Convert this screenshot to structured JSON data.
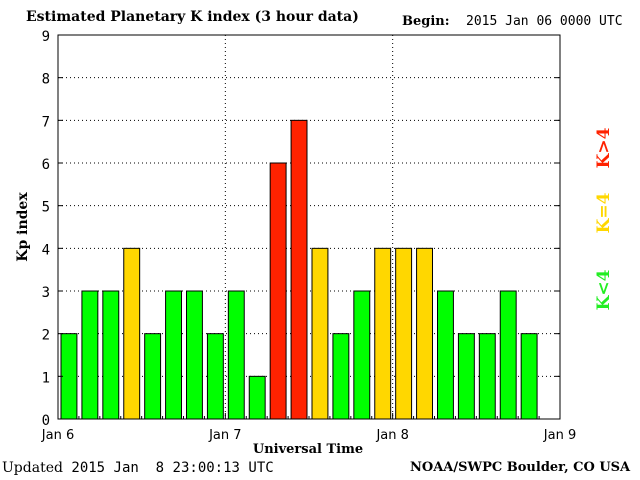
{
  "header": {
    "title": "Estimated Planetary K index (3 hour data)",
    "begin_label": "Begin:",
    "begin_value": "2015 Jan 06 0000 UTC"
  },
  "footer": {
    "updated_label": "Updated",
    "updated_value": "2015 Jan  8 23:00:13 UTC",
    "source": "NOAA/SWPC Boulder, CO USA"
  },
  "colors": {
    "low": "#00ff00",
    "mid": "#ffd700",
    "high": "#ff2200"
  },
  "legend": [
    {
      "label": "K<4",
      "color": "#22ee22"
    },
    {
      "label": "K=4",
      "color": "#ffd700"
    },
    {
      "label": "K>4",
      "color": "#ff2200"
    }
  ],
  "chart_data": {
    "type": "bar",
    "title": "Estimated Planetary K index (3 hour data)",
    "xlabel": "Universal Time",
    "ylabel": "Kp index",
    "ylim": [
      0,
      9
    ],
    "yticks": [
      "0",
      "1",
      "2",
      "3",
      "4",
      "5",
      "6",
      "7",
      "8",
      "9"
    ],
    "xticks": [
      "Jan 6",
      "Jan 7",
      "Jan 8",
      "Jan 9"
    ],
    "grid": true,
    "values": [
      2,
      3,
      3,
      4,
      2,
      3,
      3,
      2,
      3,
      1,
      6,
      7,
      4,
      2,
      3,
      4,
      4,
      4,
      3,
      2,
      2,
      3,
      2
    ]
  }
}
